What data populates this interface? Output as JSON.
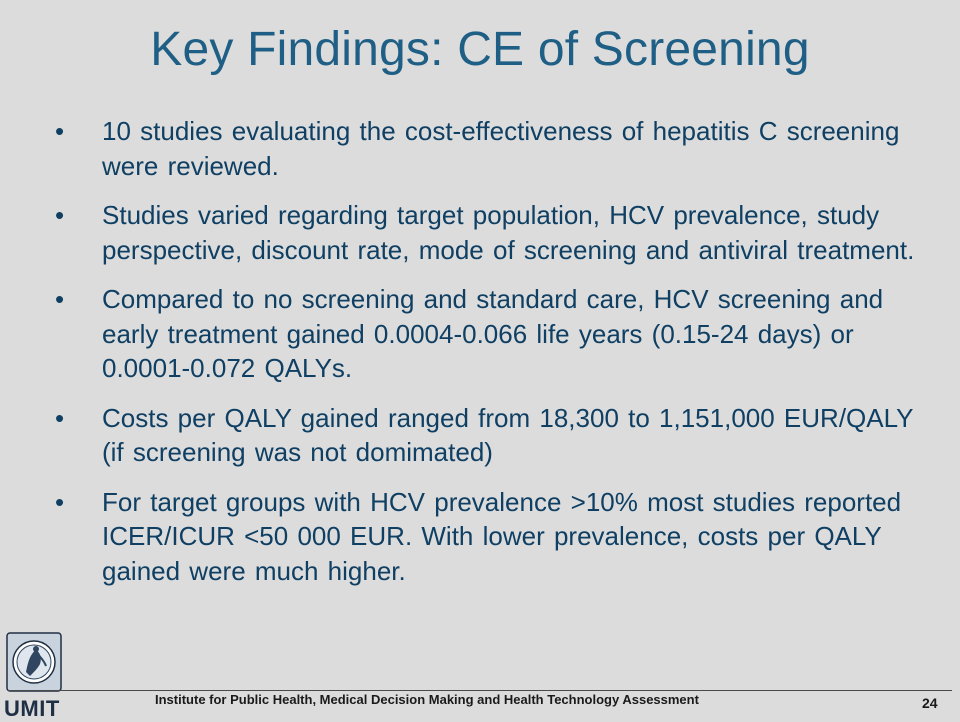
{
  "slide": {
    "title": "Key Findings: CE of Screening",
    "bullet_char": "•",
    "bullets": [
      "10 studies evaluating the cost-effectiveness of hepatitis C screening were reviewed.",
      "Studies varied regarding target population, HCV prevalence, study perspective, discount rate, mode of screening and antiviral treatment.",
      "Compared to no screening and standard care, HCV screening and early treatment gained 0.0004-0.066 life years (0.15-24 days) or 0.0001-0.072 QALYs.",
      "Costs per QALY gained ranged from 18,300 to 1,151,000 EUR/QALY (if screening was not domimated)",
      "For target groups with HCV prevalence >10% most studies reported ICER/ICUR <50 000 EUR. With lower prevalence, costs per QALY gained were much higher."
    ]
  },
  "footer": {
    "institute": "Institute for Public Health, Medical Decision Making and Health Technology Assessment",
    "page_number": "24",
    "logo_text": "UMIT"
  },
  "colors": {
    "background": "#dcdcdc",
    "title": "#1f5f86",
    "body_text": "#0f3f63"
  }
}
